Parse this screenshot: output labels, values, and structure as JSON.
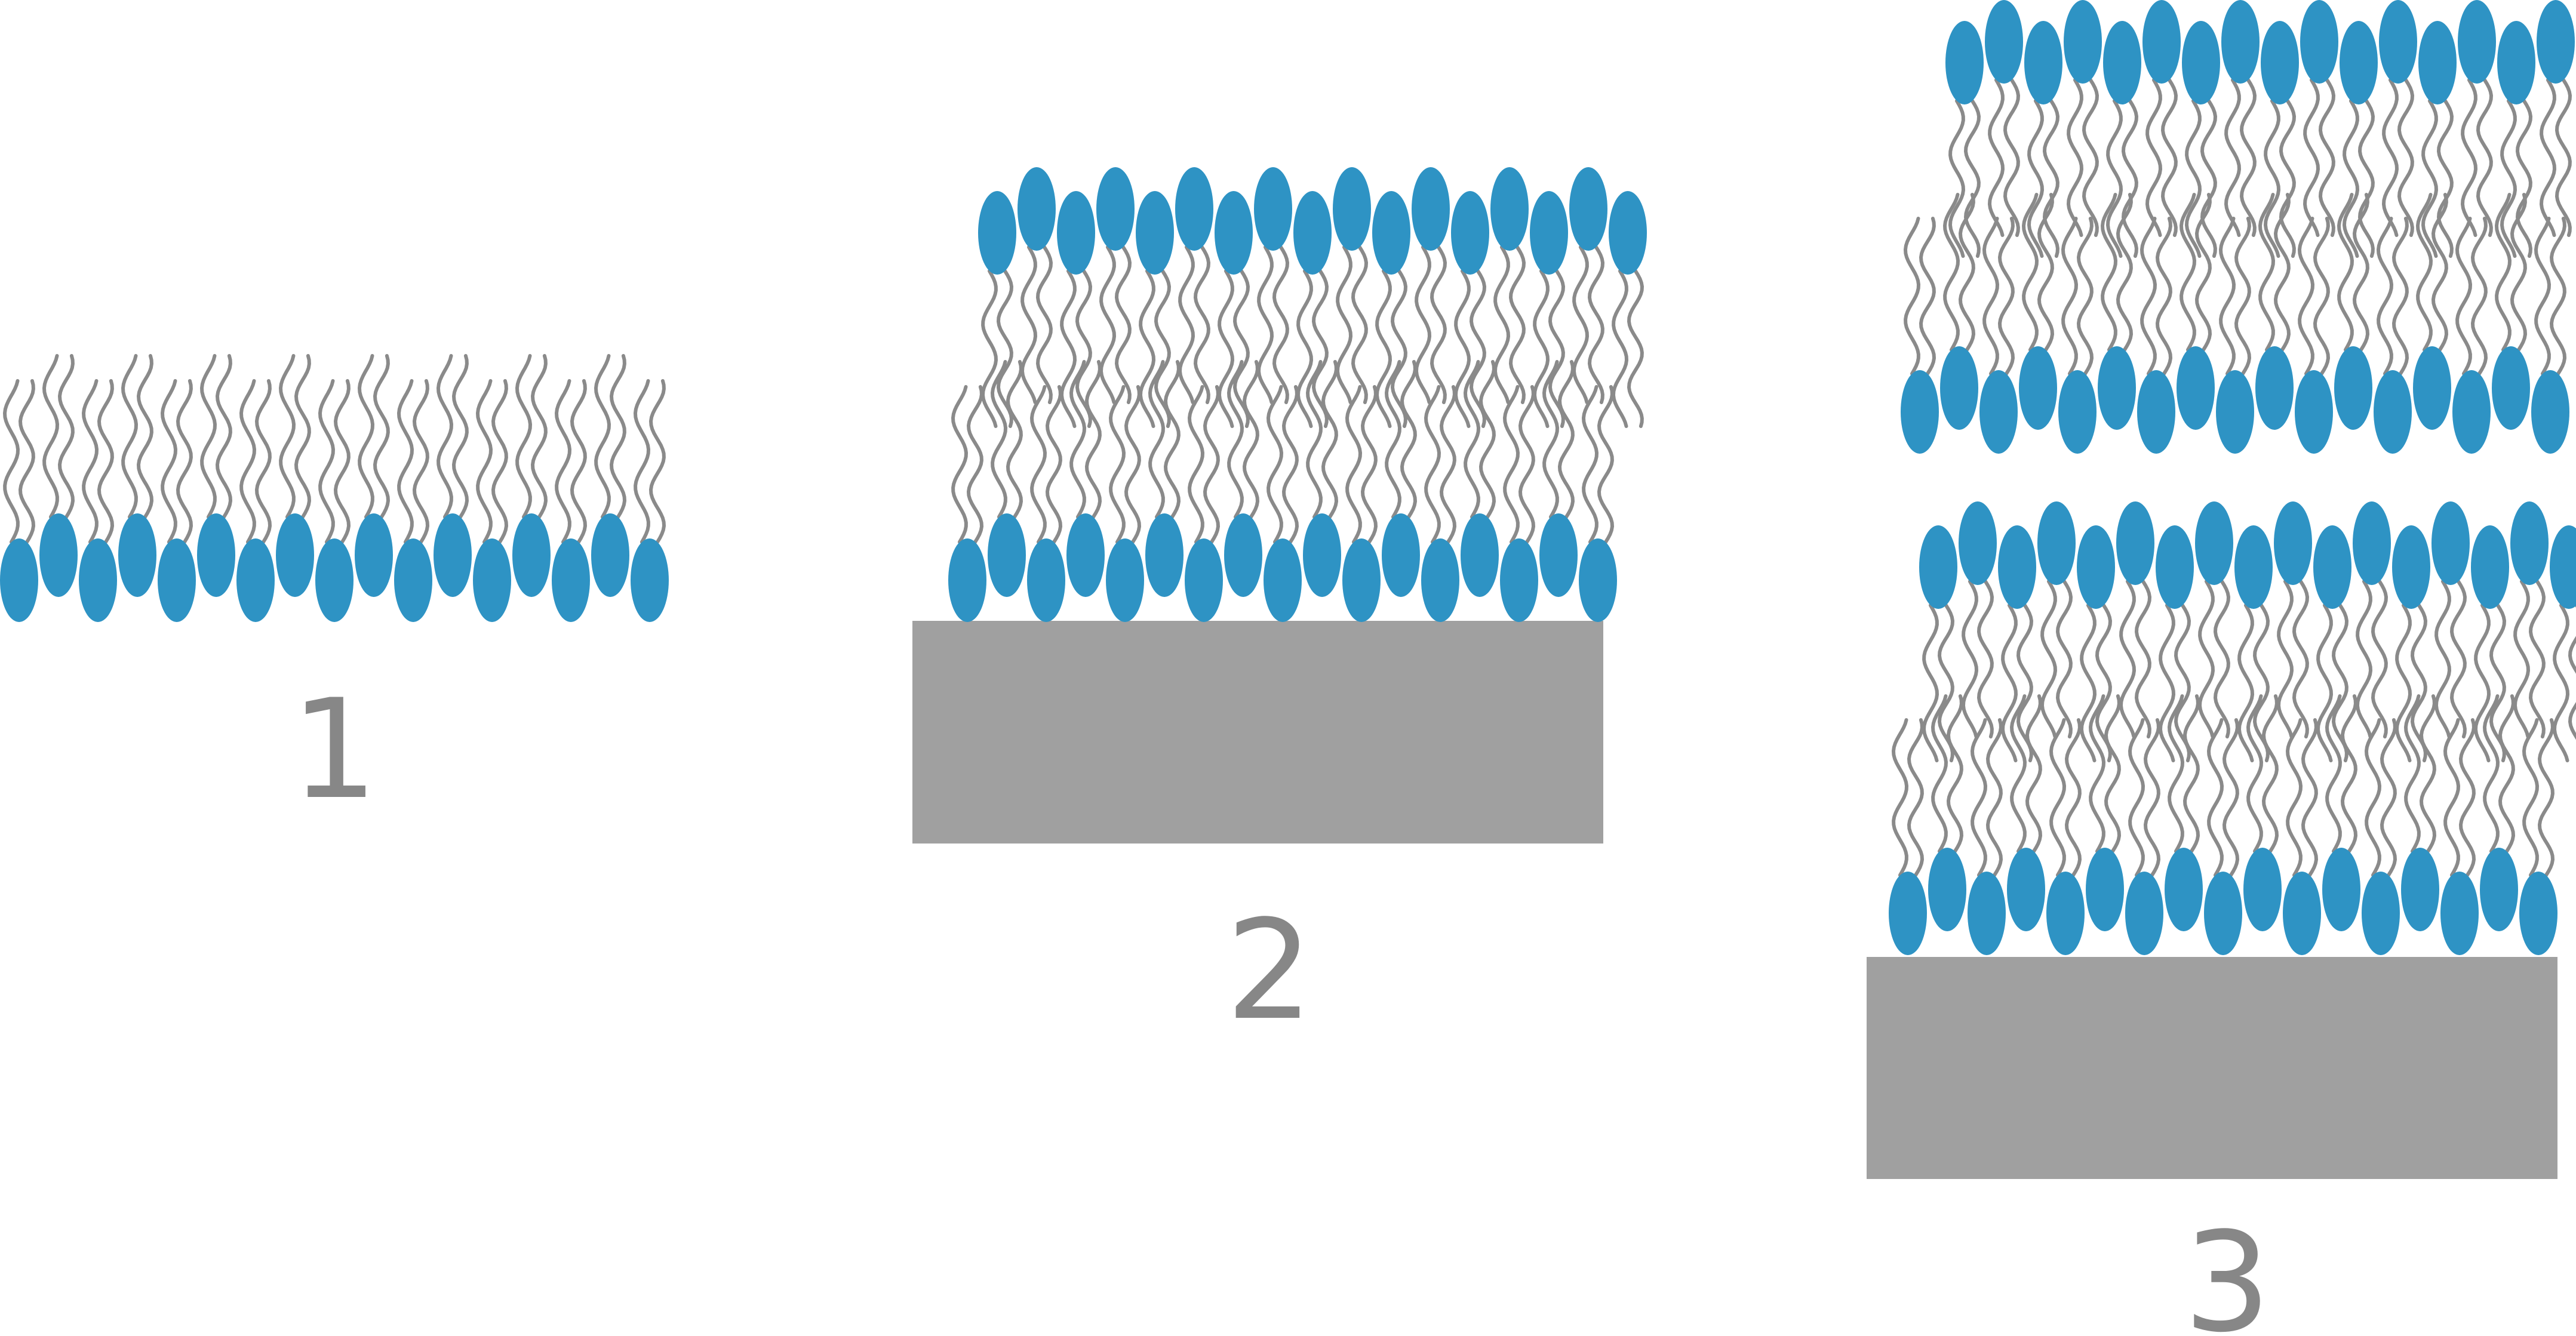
{
  "panels": [
    {
      "id": "panel-1",
      "label": "1",
      "structure": "lipid-monolayer",
      "substrate": false
    },
    {
      "id": "panel-2",
      "label": "2",
      "structure": "supported-lipid-bilayer",
      "substrate": true
    },
    {
      "id": "panel-3",
      "label": "3",
      "structure": "stacked-supported-bilayers",
      "substrate": true
    }
  ],
  "colors": {
    "head": "#2e93c4",
    "tail": "#8a8a8a",
    "substrate": "#a0a0a0",
    "label": "#878787",
    "background": "#ffffff"
  }
}
